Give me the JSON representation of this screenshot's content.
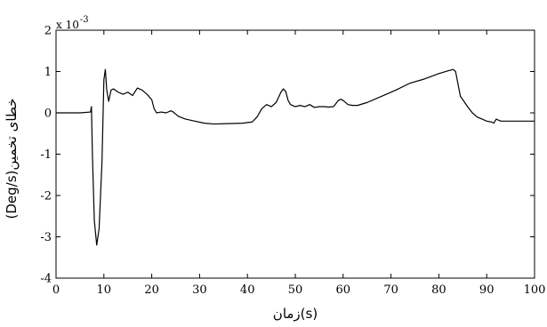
{
  "chart_data": {
    "type": "line",
    "title": "",
    "xlabel": "(s)زمان",
    "ylabel": "خطای تخمین(Deg/s)",
    "y_multiplier_label": "x 10",
    "y_multiplier_exponent": "-3",
    "xlim": [
      0,
      100
    ],
    "ylim": [
      -4,
      2
    ],
    "grid": false,
    "x_ticks": [
      "0",
      "10",
      "20",
      "30",
      "40",
      "50",
      "60",
      "70",
      "80",
      "90",
      "100"
    ],
    "y_ticks": [
      "2",
      "1",
      "0",
      "-1",
      "-2",
      "-3",
      "-4"
    ],
    "series": [
      {
        "color": "#000000",
        "x": [
          0,
          2,
          5,
          7.2,
          7.4,
          7.6,
          8.0,
          8.5,
          9.0,
          9.6,
          10.0,
          10.3,
          10.6,
          11.0,
          11.5,
          12.0,
          13.0,
          14.0,
          15.0,
          16.0,
          17.0,
          18.0,
          19.0,
          20.0,
          20.5,
          21.0,
          22.0,
          23.0,
          24.0,
          24.5,
          25.5,
          27.0,
          29.0,
          31.0,
          33.0,
          36.0,
          39.0,
          41.0,
          42.0,
          43.0,
          44.0,
          45.0,
          46.0,
          47.0,
          47.5,
          48.0,
          48.5,
          49.0,
          50.0,
          51.0,
          52.0,
          53.0,
          54.0,
          55.0,
          56.0,
          57.0,
          58.0,
          59.0,
          59.5,
          60.0,
          61.0,
          62.0,
          63.0,
          65.0,
          68.0,
          71.0,
          74.0,
          77.0,
          80.0,
          82.0,
          83.0,
          83.5,
          84.0,
          84.5,
          85.0,
          86.0,
          87.0,
          88.0,
          89.0,
          90.0,
          91.0,
          91.5,
          92.0,
          92.5,
          93.0,
          95.0,
          98.0,
          100.0
        ],
        "y": [
          0.0,
          0.0,
          0.0,
          0.02,
          0.15,
          -1.0,
          -2.6,
          -3.2,
          -2.8,
          -1.2,
          0.8,
          1.05,
          0.55,
          0.28,
          0.55,
          0.58,
          0.5,
          0.45,
          0.5,
          0.42,
          0.6,
          0.55,
          0.45,
          0.32,
          0.1,
          0.0,
          0.02,
          0.0,
          0.05,
          0.02,
          -0.08,
          -0.15,
          -0.2,
          -0.25,
          -0.27,
          -0.26,
          -0.25,
          -0.22,
          -0.1,
          0.1,
          0.2,
          0.15,
          0.25,
          0.5,
          0.58,
          0.52,
          0.3,
          0.2,
          0.15,
          0.18,
          0.15,
          0.2,
          0.13,
          0.15,
          0.15,
          0.14,
          0.15,
          0.3,
          0.33,
          0.3,
          0.2,
          0.18,
          0.18,
          0.25,
          0.4,
          0.55,
          0.72,
          0.82,
          0.95,
          1.02,
          1.05,
          1.0,
          0.7,
          0.4,
          0.32,
          0.15,
          0.0,
          -0.1,
          -0.15,
          -0.2,
          -0.22,
          -0.25,
          -0.15,
          -0.18,
          -0.2,
          -0.2,
          -0.2,
          -0.2
        ]
      }
    ]
  }
}
